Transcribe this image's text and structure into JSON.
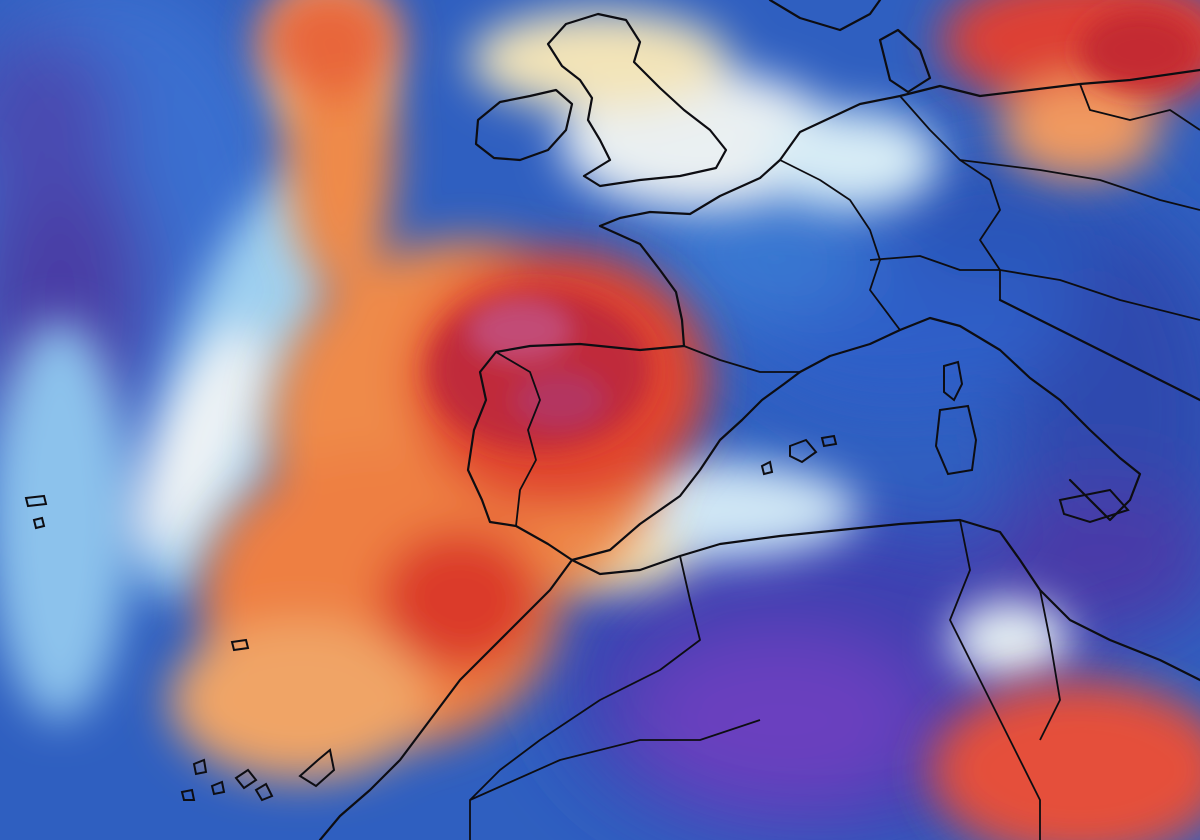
{
  "map": {
    "kind": "temperature-anomaly-heatmap",
    "region": "western-europe-north-africa",
    "palette": {
      "deep_purple": "#5b3fa8",
      "deep_blue": "#2746a8",
      "blue": "#3d7ad6",
      "light_blue": "#8fc3ee",
      "pale": "#eef3f5",
      "cream": "#f5dca0",
      "orange": "#ef8a4a",
      "red": "#e0452e",
      "dark_red": "#c02a3a",
      "magenta": "#c24c76"
    }
  }
}
